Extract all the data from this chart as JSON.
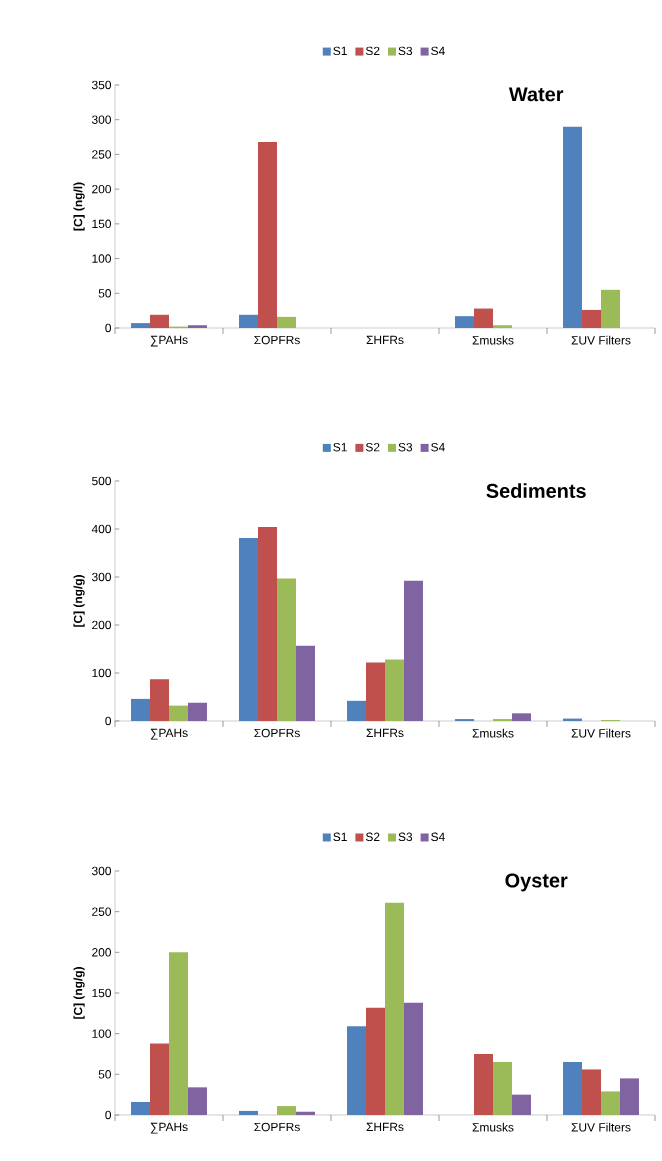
{
  "chart_data": [
    {
      "type": "bar",
      "title": "Water",
      "ylabel": "[C] (ng/l)",
      "categories": [
        "∑PAHs",
        "ΣOPFRs",
        "ΣHFRs",
        "Σmusks",
        "ΣUV Filters"
      ],
      "ylim": [
        0,
        350
      ],
      "yticks": [
        0,
        50,
        100,
        150,
        200,
        250,
        300,
        350
      ],
      "legend": "top",
      "series": [
        {
          "name": "S1",
          "color": "#4f81bd",
          "values": [
            7,
            19,
            null,
            17,
            290
          ]
        },
        {
          "name": "S2",
          "color": "#c0504d",
          "values": [
            19,
            268,
            null,
            28,
            26
          ]
        },
        {
          "name": "S3",
          "color": "#9bbb59",
          "values": [
            2,
            16,
            null,
            4,
            55
          ]
        },
        {
          "name": "S4",
          "color": "#8064a2",
          "values": [
            4,
            null,
            null,
            null,
            null
          ]
        }
      ]
    },
    {
      "type": "bar",
      "title": "Sediments",
      "ylabel": "[C] (ng/g)",
      "categories": [
        "∑PAHs",
        "ΣOPFRs",
        "ΣHFRs",
        "Σmusks",
        "ΣUV Filters"
      ],
      "ylim": [
        0,
        500
      ],
      "yticks": [
        0,
        100,
        200,
        300,
        400,
        500
      ],
      "legend": "top",
      "series": [
        {
          "name": "S1",
          "color": "#4f81bd",
          "values": [
            46,
            381,
            42,
            4,
            5
          ]
        },
        {
          "name": "S2",
          "color": "#c0504d",
          "values": [
            87,
            404,
            122,
            null,
            null
          ]
        },
        {
          "name": "S3",
          "color": "#9bbb59",
          "values": [
            32,
            297,
            128,
            4,
            2
          ]
        },
        {
          "name": "S4",
          "color": "#8064a2",
          "values": [
            38,
            157,
            292,
            16,
            null
          ]
        }
      ]
    },
    {
      "type": "bar",
      "title": "Oyster",
      "ylabel": "[C] (ng/g)",
      "categories": [
        "∑PAHs",
        "ΣOPFRs",
        "ΣHFRs",
        "Σmusks",
        "ΣUV Filters"
      ],
      "ylim": [
        0,
        300
      ],
      "yticks": [
        0,
        50,
        100,
        150,
        200,
        250,
        300
      ],
      "legend": "top",
      "series": [
        {
          "name": "S1",
          "color": "#4f81bd",
          "values": [
            16,
            5,
            109,
            null,
            65
          ]
        },
        {
          "name": "S2",
          "color": "#c0504d",
          "values": [
            88,
            null,
            132,
            75,
            56
          ]
        },
        {
          "name": "S3",
          "color": "#9bbb59",
          "values": [
            200,
            11,
            261,
            65,
            29
          ]
        },
        {
          "name": "S4",
          "color": "#8064a2",
          "values": [
            34,
            4,
            138,
            25,
            45
          ]
        }
      ]
    }
  ]
}
